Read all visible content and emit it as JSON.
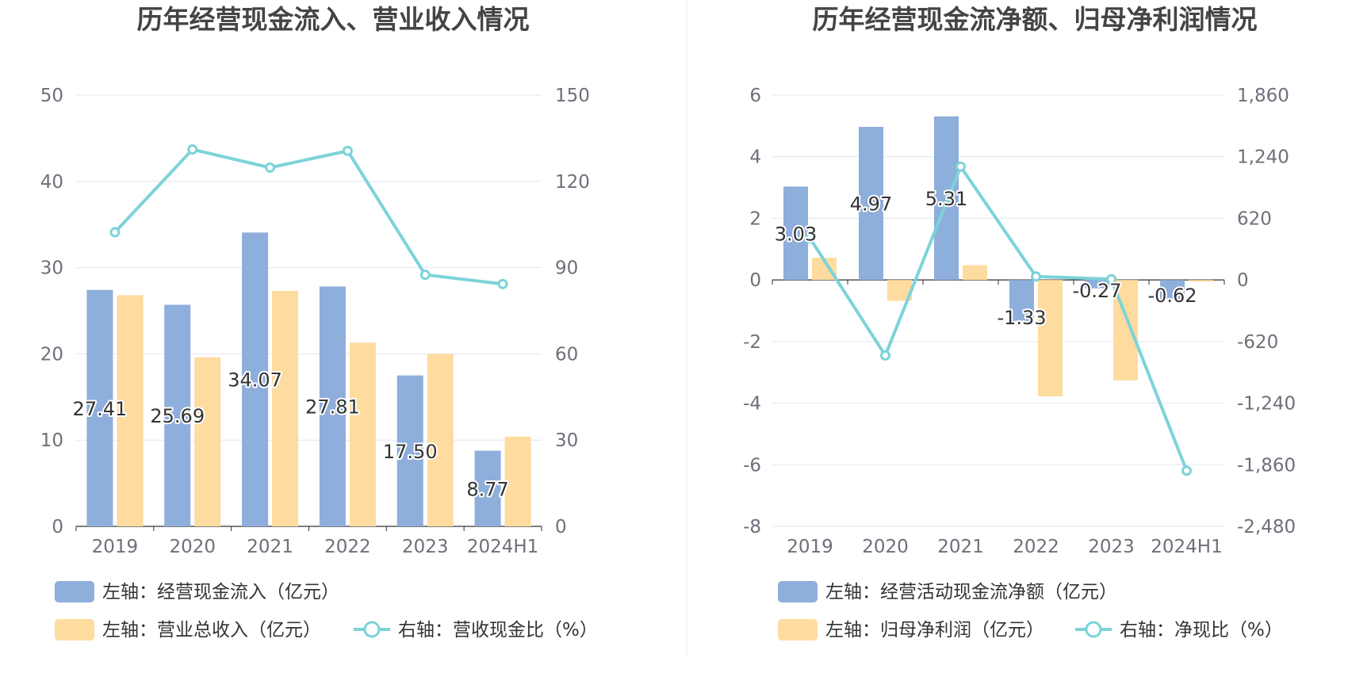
{
  "chart_data": [
    {
      "type": "bar",
      "title": "历年经营现金流入、营业收入情况",
      "categories": [
        "2019",
        "2020",
        "2021",
        "2022",
        "2023",
        "2024H1"
      ],
      "left_axis": {
        "ylim": [
          0,
          50
        ],
        "ticks": [
          "0",
          "10",
          "20",
          "30",
          "40",
          "50"
        ]
      },
      "right_axis": {
        "ylim": [
          0,
          150
        ],
        "ticks": [
          "0",
          "30",
          "60",
          "90",
          "120",
          "150"
        ]
      },
      "series": [
        {
          "name": "左轴：经营现金流入（亿元）",
          "kind": "bar",
          "axis": "left",
          "color": "#8eaedb",
          "values": [
            27.41,
            25.69,
            34.07,
            27.81,
            17.5,
            8.77
          ],
          "labels": [
            "27.41",
            "25.69",
            "34.07",
            "27.81",
            "17.50",
            "8.77"
          ]
        },
        {
          "name": "左轴：营业总收入（亿元）",
          "kind": "bar",
          "axis": "left",
          "color": "#fedb9f",
          "values": [
            26.8,
            19.6,
            27.3,
            21.3,
            20.0,
            10.4
          ]
        },
        {
          "name": "右轴：营收现金比（%）",
          "kind": "line",
          "axis": "right",
          "color": "#7dd3d8",
          "values": [
            102.3,
            131.1,
            124.8,
            130.6,
            87.5,
            84.3
          ]
        }
      ],
      "legend_position": "bottom-left"
    },
    {
      "type": "bar",
      "title": "历年经营现金流净额、归母净利润情况",
      "categories": [
        "2019",
        "2020",
        "2021",
        "2022",
        "2023",
        "2024H1"
      ],
      "left_axis": {
        "ylim": [
          -8,
          6
        ],
        "ticks": [
          "-8",
          "-6",
          "-4",
          "-2",
          "0",
          "2",
          "4",
          "6"
        ]
      },
      "right_axis": {
        "ylim": [
          -2480,
          1860
        ],
        "ticks": [
          "-2,480",
          "-1,860",
          "-1,240",
          "-620",
          "0",
          "620",
          "1,240",
          "1,860"
        ]
      },
      "series": [
        {
          "name": "左轴：经营活动现金流净额（亿元）",
          "kind": "bar",
          "axis": "left",
          "color": "#8eaedb",
          "values": [
            3.03,
            4.97,
            5.31,
            -1.33,
            -0.27,
            -0.62
          ],
          "labels": [
            "3.03",
            "4.97",
            "5.31",
            "-1.33",
            "-0.27",
            "-0.62"
          ]
        },
        {
          "name": "左轴：归母净利润（亿元）",
          "kind": "bar",
          "axis": "left",
          "color": "#fedb9f",
          "values": [
            0.72,
            -0.68,
            0.48,
            -3.78,
            -3.26,
            -0.05
          ]
        },
        {
          "name": "右轴：净现比（%）",
          "kind": "line",
          "axis": "right",
          "color": "#7dd3d8",
          "values": [
            420,
            -760,
            1140,
            35,
            8,
            -1920
          ]
        }
      ],
      "legend_position": "bottom-left"
    }
  ]
}
